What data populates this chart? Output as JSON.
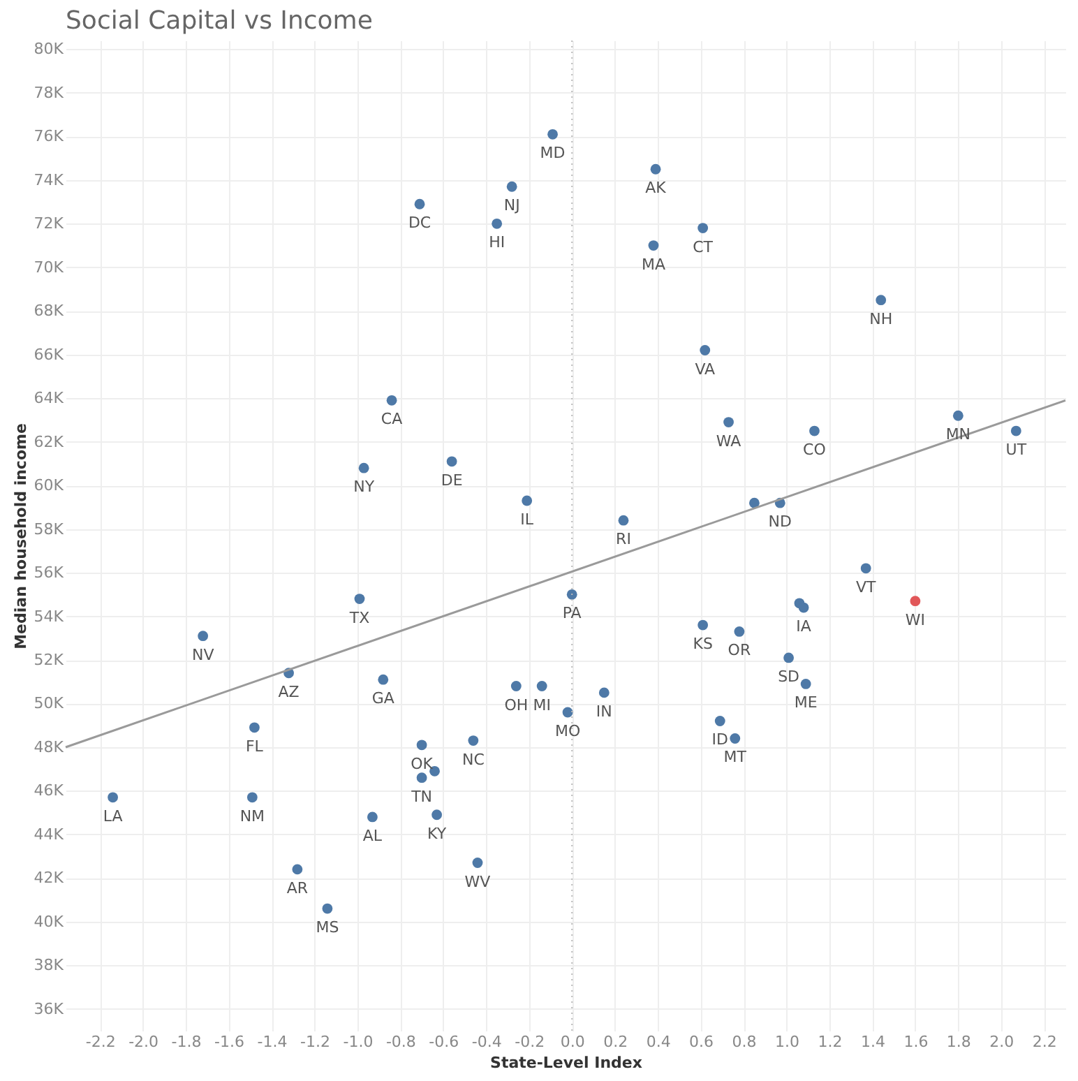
{
  "chart_data": {
    "type": "scatter",
    "title": "Social Capital vs Income",
    "xlabel": "State-Level Index",
    "ylabel": "Median household income",
    "xlim": [
      -2.36,
      2.3
    ],
    "ylim": [
      35000,
      80400
    ],
    "xticks": [
      {
        "value": -2.2,
        "label": "-2.2"
      },
      {
        "value": -2.0,
        "label": "-2.0"
      },
      {
        "value": -1.8,
        "label": "-1.8"
      },
      {
        "value": -1.6,
        "label": "-1.6"
      },
      {
        "value": -1.4,
        "label": "-1.4"
      },
      {
        "value": -1.2,
        "label": "-1.2"
      },
      {
        "value": -1.0,
        "label": "-1.0"
      },
      {
        "value": -0.8,
        "label": "-0.8"
      },
      {
        "value": -0.6,
        "label": "-0.6"
      },
      {
        "value": -0.4,
        "label": "-0.4"
      },
      {
        "value": -0.2,
        "label": "-0.2"
      },
      {
        "value": 0,
        "label": "0.0"
      },
      {
        "value": 0.2,
        "label": "0.2"
      },
      {
        "value": 0.4,
        "label": "0.4"
      },
      {
        "value": 0.6,
        "label": "0.6"
      },
      {
        "value": 0.8,
        "label": "0.8"
      },
      {
        "value": 1.0,
        "label": "1.0"
      },
      {
        "value": 1.2,
        "label": "1.2"
      },
      {
        "value": 1.4,
        "label": "1.4"
      },
      {
        "value": 1.6,
        "label": "1.6"
      },
      {
        "value": 1.8,
        "label": "1.8"
      },
      {
        "value": 2.0,
        "label": "2.0"
      },
      {
        "value": 2.2,
        "label": "2.2"
      }
    ],
    "yticks": [
      {
        "value": 36000,
        "label": "36K"
      },
      {
        "value": 38000,
        "label": "38K"
      },
      {
        "value": 40000,
        "label": "40K"
      },
      {
        "value": 42000,
        "label": "42K"
      },
      {
        "value": 44000,
        "label": "44K"
      },
      {
        "value": 46000,
        "label": "46K"
      },
      {
        "value": 48000,
        "label": "48K"
      },
      {
        "value": 50000,
        "label": "50K"
      },
      {
        "value": 52000,
        "label": "52K"
      },
      {
        "value": 54000,
        "label": "54K"
      },
      {
        "value": 56000,
        "label": "56K"
      },
      {
        "value": 58000,
        "label": "58K"
      },
      {
        "value": 60000,
        "label": "60K"
      },
      {
        "value": 62000,
        "label": "62K"
      },
      {
        "value": 64000,
        "label": "64K"
      },
      {
        "value": 66000,
        "label": "66K"
      },
      {
        "value": 68000,
        "label": "68K"
      },
      {
        "value": 70000,
        "label": "70K"
      },
      {
        "value": 72000,
        "label": "72K"
      },
      {
        "value": 74000,
        "label": "74K"
      },
      {
        "value": 76000,
        "label": "76K"
      },
      {
        "value": 78000,
        "label": "78K"
      },
      {
        "value": 80000,
        "label": "80K"
      }
    ],
    "grid": true,
    "marker": "circle",
    "ref_lines": [
      {
        "axis": "x",
        "value": 0,
        "line_style": "dotted",
        "color": "#bbbbbb"
      }
    ],
    "series": [
      {
        "x": [
          -0.71,
          -0.28,
          -0.35,
          -0.84,
          -0.97,
          -0.56,
          -0.21,
          -0.09,
          0.39,
          0.38,
          0.61,
          1.44,
          0.62,
          0.73,
          1.13,
          1.8,
          2.07,
          0.24,
          0.85,
          0.97,
          -0.99,
          -1.72,
          -1.32,
          -0.88,
          -0.26,
          -0.14,
          -1.48,
          -0.7,
          -0.46,
          -0.64,
          -0.7,
          -2.14,
          -1.49,
          -0.93,
          -0.63,
          -0.44,
          -1.28,
          -1.14,
          0.0,
          1.37,
          1.6,
          1.06,
          1.08,
          0.61,
          0.78,
          1.01,
          0.15,
          -0.02,
          1.09,
          0.69,
          0.76
        ],
        "values": [
          72900,
          73700,
          72000,
          63900,
          60800,
          61100,
          59300,
          76100,
          74500,
          71000,
          71800,
          68500,
          66200,
          62900,
          62500,
          63200,
          62500,
          58400,
          59200,
          59200,
          54800,
          53100,
          51400,
          51100,
          50800,
          50800,
          48900,
          48100,
          48300,
          46900,
          46600,
          45700,
          45700,
          44800,
          44900,
          42700,
          42400,
          40600,
          55000,
          56200,
          54700,
          54600,
          54400,
          53600,
          53300,
          52100,
          50500,
          49600,
          50900,
          49200,
          48400
        ],
        "colors": [
          "#4e79a7",
          "#4e79a7",
          "#4e79a7",
          "#4e79a7",
          "#4e79a7",
          "#4e79a7",
          "#4e79a7",
          "#4e79a7",
          "#4e79a7",
          "#4e79a7",
          "#4e79a7",
          "#4e79a7",
          "#4e79a7",
          "#4e79a7",
          "#4e79a7",
          "#4e79a7",
          "#4e79a7",
          "#4e79a7",
          "#4e79a7",
          "#4e79a7",
          "#4e79a7",
          "#4e79a7",
          "#4e79a7",
          "#4e79a7",
          "#4e79a7",
          "#4e79a7",
          "#4e79a7",
          "#4e79a7",
          "#4e79a7",
          "#4e79a7",
          "#4e79a7",
          "#4e79a7",
          "#4e79a7",
          "#4e79a7",
          "#4e79a7",
          "#4e79a7",
          "#4e79a7",
          "#4e79a7",
          "#4e79a7",
          "#4e79a7",
          "#e15759",
          "#4e79a7",
          "#4e79a7",
          "#4e79a7",
          "#4e79a7",
          "#4e79a7",
          "#4e79a7",
          "#4e79a7",
          "#4e79a7",
          "#4e79a7",
          "#4e79a7"
        ]
      },
      {
        "type": "line",
        "x": [
          -2.36,
          2.3
        ],
        "values": [
          48000,
          63900
        ],
        "color": "#9a9a9a",
        "marker": "none",
        "line_style": "solid"
      }
    ],
    "annotations": [
      {
        "text": "DC",
        "x": -0.71,
        "y": 72900
      },
      {
        "text": "NJ",
        "x": -0.28,
        "y": 73700
      },
      {
        "text": "HI",
        "x": -0.35,
        "y": 72000
      },
      {
        "text": "CA",
        "x": -0.84,
        "y": 63900
      },
      {
        "text": "NY",
        "x": -0.97,
        "y": 60800
      },
      {
        "text": "DE",
        "x": -0.56,
        "y": 61100
      },
      {
        "text": "IL",
        "x": -0.21,
        "y": 59300
      },
      {
        "text": "MD",
        "x": -0.09,
        "y": 76100
      },
      {
        "text": "AK",
        "x": 0.39,
        "y": 74500
      },
      {
        "text": "MA",
        "x": 0.38,
        "y": 71000
      },
      {
        "text": "CT",
        "x": 0.61,
        "y": 71800
      },
      {
        "text": "NH",
        "x": 1.44,
        "y": 68500
      },
      {
        "text": "VA",
        "x": 0.62,
        "y": 66200
      },
      {
        "text": "WA",
        "x": 0.73,
        "y": 62900
      },
      {
        "text": "CO",
        "x": 1.13,
        "y": 62500
      },
      {
        "text": "MN",
        "x": 1.8,
        "y": 63200
      },
      {
        "text": "UT",
        "x": 2.07,
        "y": 62500
      },
      {
        "text": "RI",
        "x": 0.24,
        "y": 58400
      },
      {
        "text": "ND",
        "x": 0.97,
        "y": 59200
      },
      {
        "text": "TX",
        "x": -0.99,
        "y": 54800
      },
      {
        "text": "NV",
        "x": -1.72,
        "y": 53100
      },
      {
        "text": "AZ",
        "x": -1.32,
        "y": 51400
      },
      {
        "text": "GA",
        "x": -0.88,
        "y": 51100
      },
      {
        "text": "OH",
        "x": -0.26,
        "y": 50800
      },
      {
        "text": "MI",
        "x": -0.14,
        "y": 50800
      },
      {
        "text": "FL",
        "x": -1.48,
        "y": 48900
      },
      {
        "text": "OK",
        "x": -0.7,
        "y": 48100
      },
      {
        "text": "NC",
        "x": -0.46,
        "y": 48300
      },
      {
        "text": "TN",
        "x": -0.7,
        "y": 46600
      },
      {
        "text": "LA",
        "x": -2.14,
        "y": 45700
      },
      {
        "text": "NM",
        "x": -1.49,
        "y": 45700
      },
      {
        "text": "AL",
        "x": -0.93,
        "y": 44800
      },
      {
        "text": "KY",
        "x": -0.63,
        "y": 44900
      },
      {
        "text": "WV",
        "x": -0.44,
        "y": 42700
      },
      {
        "text": "AR",
        "x": -1.28,
        "y": 42400
      },
      {
        "text": "MS",
        "x": -1.14,
        "y": 40600
      },
      {
        "text": "PA",
        "x": 0.0,
        "y": 55000
      },
      {
        "text": "VT",
        "x": 1.37,
        "y": 56200
      },
      {
        "text": "WI",
        "x": 1.6,
        "y": 54700
      },
      {
        "text": "IA",
        "x": 1.08,
        "y": 54400
      },
      {
        "text": "KS",
        "x": 0.61,
        "y": 53600
      },
      {
        "text": "OR",
        "x": 0.78,
        "y": 53300
      },
      {
        "text": "SD",
        "x": 1.01,
        "y": 52100
      },
      {
        "text": "IN",
        "x": 0.15,
        "y": 50500
      },
      {
        "text": "MO",
        "x": -0.02,
        "y": 49600
      },
      {
        "text": "ME",
        "x": 1.09,
        "y": 50900
      },
      {
        "text": "ID",
        "x": 0.69,
        "y": 49200
      },
      {
        "text": "MT",
        "x": 0.76,
        "y": 48400
      }
    ]
  }
}
